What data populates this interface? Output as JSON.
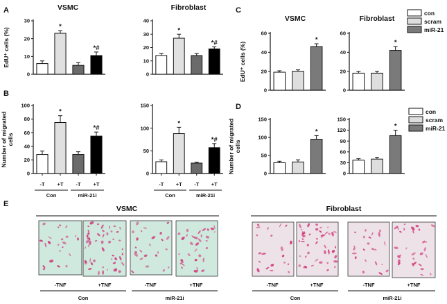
{
  "panel_labels": {
    "A": "A",
    "B": "B",
    "C": "C",
    "D": "D",
    "E": "E"
  },
  "colors": {
    "con": "#ffffff",
    "treated": "#e0e0e0",
    "mir_dark": "#6b6b6b",
    "mir_black": "#000000",
    "mir21_over": "#7a7a7a",
    "scram": "#dedede",
    "vsmc_bg": "#cfe9df",
    "fib_bg": "#ece2e8",
    "stain": "#d23a7c"
  },
  "legend": {
    "items": [
      {
        "label": "con",
        "color": "#ffffff"
      },
      {
        "label": "scram",
        "color": "#dedede"
      },
      {
        "label": "miR-21",
        "color": "#7a7a7a"
      }
    ]
  },
  "chart_data": [
    {
      "id": "A-VSMC",
      "type": "bar",
      "title": "VSMC",
      "xlabel": "",
      "ylabel": "EdU⁺ cells (%)",
      "categories": [
        "Con -T",
        "Con +T",
        "miR-21i -T",
        "miR-21i +T"
      ],
      "values": [
        6,
        23,
        5,
        10.5
      ],
      "errors": [
        1.5,
        1.5,
        1.5,
        2
      ],
      "ylim": [
        0,
        30
      ],
      "yticks": [
        0,
        10,
        20,
        30
      ],
      "annotations": [
        "",
        "*",
        "",
        "*#"
      ]
    },
    {
      "id": "A-Fibroblast",
      "type": "bar",
      "title": "Fibroblast",
      "xlabel": "",
      "ylabel": "",
      "categories": [
        "Con -T",
        "Con +T",
        "miR-21i -T",
        "miR-21i +T"
      ],
      "values": [
        14,
        27,
        14,
        19
      ],
      "errors": [
        1.5,
        3,
        1.5,
        1.5
      ],
      "ylim": [
        0,
        40
      ],
      "yticks": [
        0,
        10,
        20,
        30,
        40
      ],
      "annotations": [
        "",
        "*",
        "",
        "*#"
      ]
    },
    {
      "id": "B-VSMC",
      "type": "bar",
      "title": "",
      "xlabel": "",
      "ylabel": "Number of migrated cells",
      "categories": [
        "Con -T",
        "Con +T",
        "miR-21i -T",
        "miR-21i +T"
      ],
      "values": [
        28,
        75,
        28,
        55
      ],
      "errors": [
        5,
        10,
        4,
        6
      ],
      "ylim": [
        0,
        100
      ],
      "yticks": [
        0,
        20,
        40,
        60,
        80,
        100
      ],
      "annotations": [
        "",
        "*",
        "",
        "*#"
      ],
      "tick_labels": [
        "-T",
        "+T",
        "-T",
        "+T"
      ],
      "groups": [
        "Con",
        "miR-21i"
      ]
    },
    {
      "id": "B-Fibroblast",
      "type": "bar",
      "title": "",
      "xlabel": "",
      "ylabel": "",
      "categories": [
        "Con -T",
        "Con +T",
        "miR-21i -T",
        "miR-21i +T"
      ],
      "values": [
        26,
        88,
        23,
        57
      ],
      "errors": [
        4,
        14,
        2,
        9
      ],
      "ylim": [
        0,
        150
      ],
      "yticks": [
        0,
        50,
        100,
        150
      ],
      "annotations": [
        "",
        "*",
        "",
        "*#"
      ],
      "tick_labels": [
        "-T",
        "+T",
        "-T",
        "+T"
      ],
      "groups": [
        "Con",
        "miR-21i"
      ]
    },
    {
      "id": "C-VSMC",
      "type": "bar",
      "title": "VSMC",
      "xlabel": "",
      "ylabel": "EdU⁺ cells (%)",
      "categories": [
        "con",
        "scram",
        "miR-21"
      ],
      "values": [
        19,
        20,
        46
      ],
      "errors": [
        1.5,
        1.5,
        3
      ],
      "ylim": [
        0,
        60
      ],
      "yticks": [
        0,
        20,
        40,
        60
      ],
      "annotations": [
        "",
        "",
        "*"
      ]
    },
    {
      "id": "C-Fibroblast",
      "type": "bar",
      "title": "Fibroblast",
      "xlabel": "",
      "ylabel": "",
      "categories": [
        "con",
        "scram",
        "miR-21"
      ],
      "values": [
        18,
        18,
        42
      ],
      "errors": [
        2,
        2,
        4
      ],
      "ylim": [
        0,
        60
      ],
      "yticks": [
        0,
        20,
        40,
        60
      ],
      "annotations": [
        "",
        "",
        "*"
      ]
    },
    {
      "id": "D-VSMC",
      "type": "bar",
      "title": "",
      "xlabel": "",
      "ylabel": "Number of migrated cells",
      "categories": [
        "con",
        "scram",
        "miR-21"
      ],
      "values": [
        30,
        32,
        95
      ],
      "errors": [
        4,
        6,
        10
      ],
      "ylim": [
        0,
        150
      ],
      "yticks": [
        0,
        50,
        100,
        150
      ],
      "annotations": [
        "",
        "",
        "*"
      ]
    },
    {
      "id": "D-Fibroblast",
      "type": "bar",
      "title": "",
      "xlabel": "",
      "ylabel": "",
      "categories": [
        "con",
        "scram",
        "miR-21"
      ],
      "values": [
        37,
        40,
        105
      ],
      "errors": [
        4,
        5,
        15
      ],
      "ylim": [
        0,
        150
      ],
      "yticks": [
        0,
        30,
        60,
        90,
        120,
        150
      ],
      "annotations": [
        "",
        "",
        "*"
      ]
    }
  ],
  "panel_e": {
    "vsmc_title": "VSMC",
    "fib_title": "Fibroblast",
    "image_labels": [
      "-TNF",
      "+TNF",
      "-TNF",
      "+TNF"
    ],
    "group_labels": [
      "Con",
      "miR-21i"
    ],
    "stain_density": [
      0.35,
      1.0,
      0.4,
      0.6
    ]
  }
}
